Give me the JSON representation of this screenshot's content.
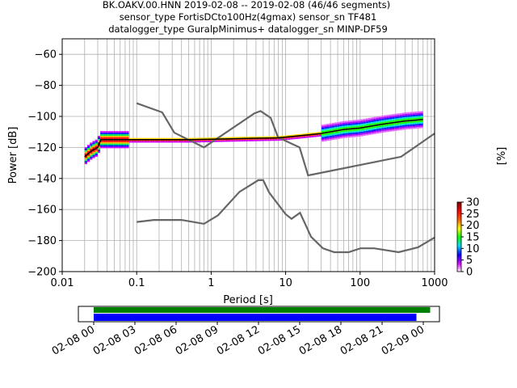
{
  "chart_data": [
    {
      "type": "heatmap",
      "title_lines": [
        "BK.OAKV.00.HNN   2019-02-08 -- 2019-02-08  (46/46 segments)",
        "sensor_type FortisDCto100Hz(4gmax) sensor_sn TF481",
        "datalogger_type GuralpMinimus+ datalogger_sn MINP-DF59"
      ],
      "xlabel": "Period [s]",
      "ylabel": "Power [dB]",
      "xscale": "log",
      "xlim": [
        0.01,
        1000
      ],
      "ylim": [
        -200,
        -50
      ],
      "xticks": [
        {
          "value": 0.01,
          "label": "0.01"
        },
        {
          "value": 0.1,
          "label": "0.1"
        },
        {
          "value": 1,
          "label": "1"
        },
        {
          "value": 10,
          "label": "10"
        },
        {
          "value": 100,
          "label": "100"
        },
        {
          "value": 1000,
          "label": "1000"
        }
      ],
      "yticks": [
        {
          "value": -60,
          "label": "−60"
        },
        {
          "value": -80,
          "label": "−80"
        },
        {
          "value": -100,
          "label": "−100"
        },
        {
          "value": -120,
          "label": "−120"
        },
        {
          "value": -140,
          "label": "−140"
        },
        {
          "value": -160,
          "label": "−160"
        },
        {
          "value": -180,
          "label": "−180"
        },
        {
          "value": -200,
          "label": "−200"
        }
      ],
      "grid": true,
      "colorbar": {
        "label": "[%]",
        "min": 0,
        "max": 30,
        "ticks": [
          {
            "value": 0,
            "label": "0"
          },
          {
            "value": 5,
            "label": "5"
          },
          {
            "value": 10,
            "label": "10"
          },
          {
            "value": 15,
            "label": "15"
          },
          {
            "value": 20,
            "label": "20"
          },
          {
            "value": 25,
            "label": "25"
          },
          {
            "value": 30,
            "label": "30"
          }
        ],
        "colors": [
          "#ffffff",
          "#d400ff",
          "#0000ff",
          "#00e0ff",
          "#00ff00",
          "#ffff00",
          "#ff6000",
          "#ff0000",
          "#800000"
        ]
      },
      "series": [
        {
          "role": "new-high-noise-model",
          "color": "#666666",
          "points": [
            [
              0.1,
              -91.5
            ],
            [
              0.22,
              -97.4
            ],
            [
              0.32,
              -110.5
            ],
            [
              0.8,
              -120
            ],
            [
              3.8,
              -98
            ],
            [
              4.6,
              -96.5
            ],
            [
              6.3,
              -101
            ],
            [
              7.9,
              -113.5
            ],
            [
              15.4,
              -120
            ],
            [
              20,
              -138
            ],
            [
              354.8,
              -126
            ],
            [
              1000,
              -111
            ]
          ]
        },
        {
          "role": "new-low-noise-model",
          "color": "#666666",
          "points": [
            [
              0.1,
              -168
            ],
            [
              0.17,
              -166.7
            ],
            [
              0.4,
              -166.7
            ],
            [
              0.8,
              -169.2
            ],
            [
              1.24,
              -163.7
            ],
            [
              2.4,
              -148.6
            ],
            [
              4.3,
              -141.1
            ],
            [
              5,
              -141.1
            ],
            [
              6,
              -149
            ],
            [
              10,
              -163
            ],
            [
              12,
              -166
            ],
            [
              15.6,
              -162.1
            ],
            [
              21.9,
              -177.5
            ],
            [
              31.6,
              -185
            ],
            [
              45,
              -187.5
            ],
            [
              70,
              -187.5
            ],
            [
              101,
              -185
            ],
            [
              154,
              -185
            ],
            [
              328,
              -187.5
            ],
            [
              600,
              -184.4
            ],
            [
              1000,
              -178
            ]
          ]
        },
        {
          "role": "mode-curve",
          "color": "#000000",
          "points": [
            [
              0.02,
              -126
            ],
            [
              0.025,
              -122
            ],
            [
              0.03,
              -120
            ],
            [
              0.033,
              -115
            ],
            [
              0.1,
              -115
            ],
            [
              0.5,
              -115
            ],
            [
              1,
              -114.7
            ],
            [
              3,
              -114.2
            ],
            [
              8,
              -113.8
            ],
            [
              15,
              -112.5
            ],
            [
              30,
              -111
            ],
            [
              60,
              -108.5
            ],
            [
              100,
              -107.5
            ],
            [
              200,
              -105
            ],
            [
              400,
              -103
            ],
            [
              700,
              -102
            ]
          ]
        }
      ],
      "density_mode": [
        [
          0.02,
          -126
        ],
        [
          0.025,
          -122
        ],
        [
          0.03,
          -120
        ],
        [
          0.033,
          -115
        ],
        [
          0.1,
          -115
        ],
        [
          0.5,
          -115
        ],
        [
          1,
          -114.7
        ],
        [
          3,
          -114.2
        ],
        [
          8,
          -113.8
        ],
        [
          15,
          -112.5
        ],
        [
          30,
          -111
        ],
        [
          60,
          -108.5
        ],
        [
          100,
          -107.5
        ],
        [
          200,
          -105
        ],
        [
          400,
          -103
        ],
        [
          700,
          -102
        ]
      ]
    },
    {
      "type": "bar",
      "role": "data-availability",
      "xlim": [
        "2019-02-08 00:00",
        "2019-02-09 00:00"
      ],
      "xticks": [
        "02-08 00",
        "02-08 03",
        "02-08 06",
        "02-08 09",
        "02-08 12",
        "02-08 15",
        "02-08 18",
        "02-08 21",
        "02-09 00"
      ],
      "bars": [
        {
          "color": "#008000",
          "start_hour": 0.0,
          "end_hour": 24.5
        },
        {
          "color": "#0000ff",
          "start_hour": 0.0,
          "end_hour": 23.5
        }
      ]
    }
  ]
}
